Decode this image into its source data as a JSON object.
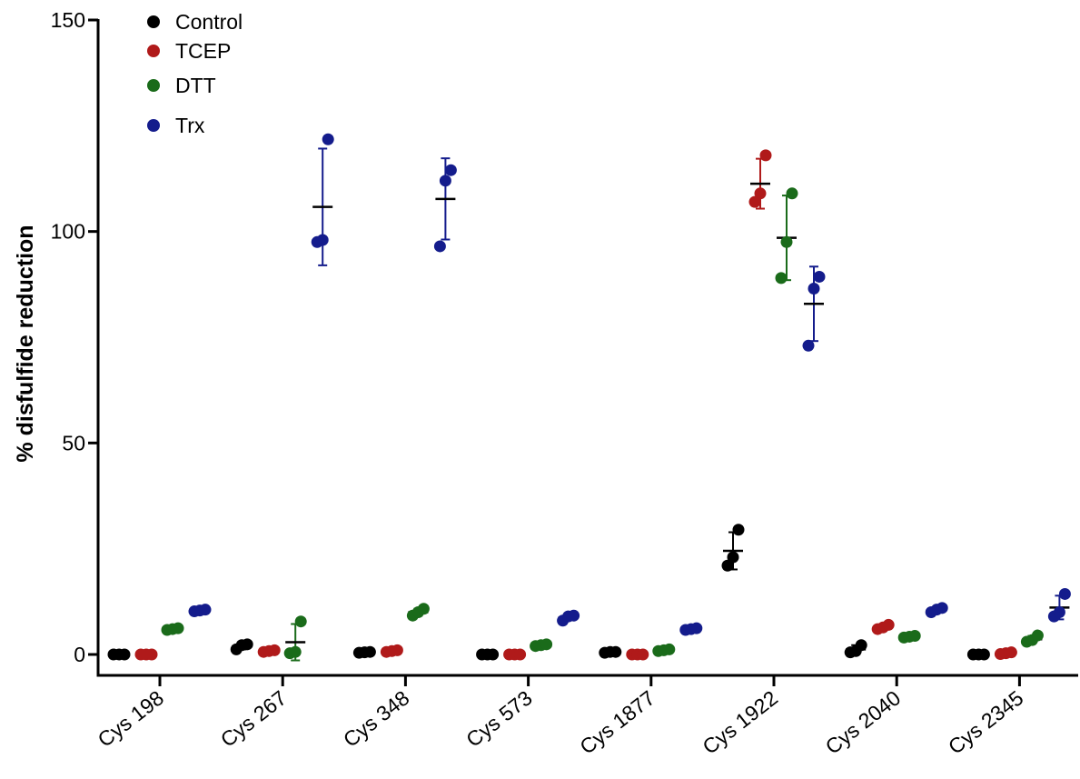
{
  "chart_data": {
    "type": "scatter",
    "ylabel": "% disfulfide reduction",
    "xlabel": "",
    "ylim": [
      0,
      150
    ],
    "yticks": [
      0,
      50,
      100,
      150
    ],
    "categories": [
      "Cys 198",
      "Cys 267",
      "Cys 348",
      "Cys 573",
      "Cys 1877",
      "Cys 1922",
      "Cys 2040",
      "Cys 2345"
    ],
    "legend_position": "top-left",
    "grid": false,
    "series": [
      {
        "name": "Control",
        "color": "#000000",
        "points": [
          [
            0.0,
            0.0,
            0.0
          ],
          [
            1.2,
            2.2,
            2.4
          ],
          [
            0.4,
            0.5,
            0.6
          ],
          [
            0.0,
            0.0,
            0.0
          ],
          [
            0.4,
            0.6,
            0.6
          ],
          [
            21.0,
            23.0,
            29.5
          ],
          [
            0.5,
            0.8,
            2.2
          ],
          [
            0.0,
            0.0,
            0.0
          ]
        ],
        "means": [
          0.0,
          1.9,
          0.5,
          0.0,
          0.5,
          24.5,
          1.2,
          0.0
        ],
        "sd": [
          0.0,
          0.7,
          0.1,
          0.0,
          0.1,
          4.4,
          1.0,
          0.0
        ]
      },
      {
        "name": "TCEP",
        "color": "#b01a1a",
        "points": [
          [
            0.0,
            0.0,
            0.0
          ],
          [
            0.6,
            0.8,
            1.0
          ],
          [
            0.6,
            0.8,
            1.0
          ],
          [
            0.0,
            0.0,
            0.0
          ],
          [
            0.0,
            0.0,
            0.0
          ],
          [
            107.0,
            109.0,
            118.0
          ],
          [
            6.0,
            6.4,
            7.0
          ],
          [
            0.1,
            0.3,
            0.5
          ]
        ],
        "means": [
          0.0,
          0.8,
          0.8,
          0.0,
          0.0,
          111.3,
          6.5,
          0.3
        ],
        "sd": [
          0.0,
          0.2,
          0.2,
          0.0,
          0.0,
          5.9,
          0.5,
          0.2
        ]
      },
      {
        "name": "DTT",
        "color": "#1a6b1a",
        "points": [
          [
            5.8,
            6.0,
            6.2
          ],
          [
            0.3,
            0.6,
            7.8
          ],
          [
            9.2,
            10.0,
            10.8
          ],
          [
            2.0,
            2.2,
            2.4
          ],
          [
            0.8,
            1.0,
            1.2
          ],
          [
            89.0,
            97.5,
            109.0
          ],
          [
            4.0,
            4.2,
            4.4
          ],
          [
            3.0,
            3.4,
            4.5
          ]
        ],
        "means": [
          6.0,
          2.9,
          10.0,
          2.2,
          1.0,
          98.5,
          4.2,
          3.6
        ],
        "sd": [
          0.2,
          4.3,
          0.8,
          0.2,
          0.2,
          10.0,
          0.2,
          0.8
        ]
      },
      {
        "name": "Trx",
        "color": "#141c8c",
        "points": [
          [
            10.2,
            10.4,
            10.6
          ],
          [
            97.5,
            98.0,
            121.8
          ],
          [
            96.5,
            112.0,
            114.5
          ],
          [
            8.0,
            9.0,
            9.2
          ],
          [
            5.8,
            6.0,
            6.2
          ],
          [
            73.0,
            86.5,
            89.3
          ],
          [
            10.0,
            10.6,
            11.0
          ],
          [
            9.0,
            10.0,
            14.3
          ]
        ],
        "means": [
          10.4,
          105.8,
          107.7,
          8.7,
          6.0,
          82.9,
          10.5,
          11.1
        ],
        "sd": [
          0.2,
          13.8,
          9.6,
          0.6,
          0.2,
          8.8,
          0.5,
          2.8
        ]
      }
    ]
  }
}
